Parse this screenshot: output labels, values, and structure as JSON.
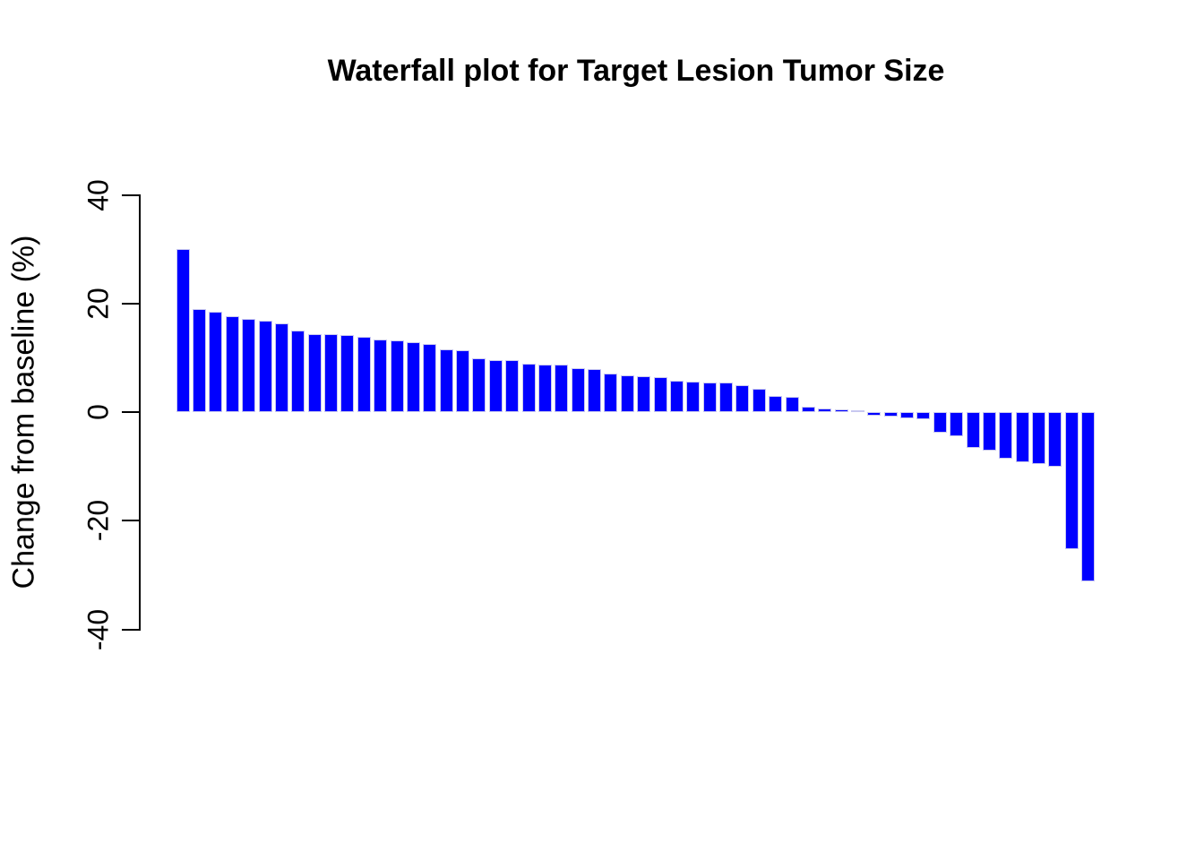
{
  "chart_data": {
    "type": "bar",
    "title": "Waterfall plot for Target Lesion Tumor Size",
    "xlabel": "",
    "ylabel": "Change from baseline (%)",
    "ylim": [
      -40,
      40
    ],
    "ytick_labels": [
      "40",
      "20",
      "0",
      "-20",
      "-40"
    ],
    "ytick_values": [
      40,
      20,
      0,
      -20,
      -40
    ],
    "grid": "off",
    "legend": "none",
    "bar_color": "#0000ff",
    "bar_border_color": "#c8c8f0",
    "axis_color": "#000000",
    "values": [
      30,
      19,
      18.5,
      17.7,
      17.1,
      16.9,
      16.3,
      15,
      14.4,
      14.3,
      14.2,
      13.9,
      13.4,
      13.2,
      12.9,
      12.6,
      11.6,
      11.3,
      9.9,
      9.6,
      9.5,
      8.9,
      8.8,
      8.7,
      8.1,
      7.9,
      7.1,
      6.8,
      6.6,
      6.5,
      5.7,
      5.6,
      5.5,
      5.4,
      5.0,
      4.3,
      2.9,
      2.8,
      1.0,
      0.6,
      0.5,
      0.4,
      -0.7,
      -0.8,
      -1.2,
      -1.4,
      -3.8,
      -4.4,
      -6.6,
      -7.1,
      -8.5,
      -9.3,
      -9.5,
      -10.0,
      -25.2,
      -31.2
    ]
  }
}
